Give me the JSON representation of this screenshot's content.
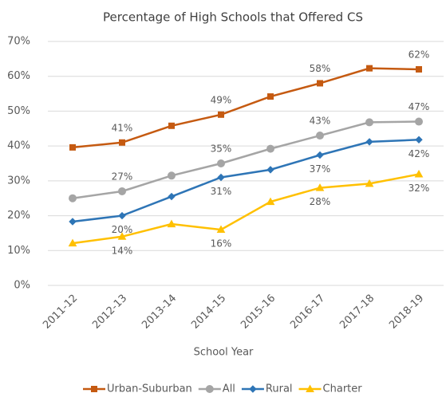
{
  "chart_data": {
    "type": "line",
    "title": "Percentage of High Schools that Offered CS",
    "x_label": "School Year",
    "categories": [
      "2011-12",
      "2012-13",
      "2013-14",
      "2014-15",
      "2015-16",
      "2016-17",
      "2017-18",
      "2018-19"
    ],
    "series": [
      {
        "name": "Urban-Suburban",
        "color": "#c55a11",
        "marker": "square",
        "label_side": "above",
        "values": [
          39.6,
          41,
          45.8,
          49,
          54.2,
          58,
          62.3,
          62
        ],
        "value_labels": [
          null,
          "41%",
          null,
          "49%",
          null,
          "58%",
          null,
          "62%"
        ]
      },
      {
        "name": "All",
        "color": "#a5a5a5",
        "marker": "circle",
        "label_side": "above",
        "values": [
          25,
          27,
          31.5,
          35,
          39.2,
          43,
          46.8,
          47
        ],
        "value_labels": [
          null,
          "27%",
          null,
          "35%",
          null,
          "43%",
          null,
          "47%"
        ]
      },
      {
        "name": "Rural",
        "color": "#2e75b6",
        "marker": "diamond",
        "label_side": "below",
        "values": [
          18.3,
          20,
          25.5,
          31,
          33.2,
          37.4,
          41.2,
          41.8
        ],
        "value_labels": [
          null,
          "20%",
          null,
          "31%",
          null,
          "37%",
          null,
          "42%"
        ]
      },
      {
        "name": "Charter",
        "color": "#ffc000",
        "marker": "triangle",
        "label_side": "below",
        "values": [
          12.1,
          14,
          17.6,
          16,
          24,
          28,
          29.2,
          31.9
        ],
        "value_labels": [
          null,
          "14%",
          null,
          "16%",
          null,
          "28%",
          null,
          "32%"
        ]
      }
    ],
    "ylim": [
      0,
      70
    ],
    "yticks": [
      {
        "value": 0,
        "label": "0%"
      },
      {
        "value": 10,
        "label": "10%"
      },
      {
        "value": 20,
        "label": "20%"
      },
      {
        "value": 30,
        "label": "30%"
      },
      {
        "value": 40,
        "label": "40%"
      },
      {
        "value": 50,
        "label": "50%"
      },
      {
        "value": 60,
        "label": "60%"
      },
      {
        "value": 70,
        "label": "70%"
      }
    ],
    "grid": true,
    "legend": "bottom"
  }
}
